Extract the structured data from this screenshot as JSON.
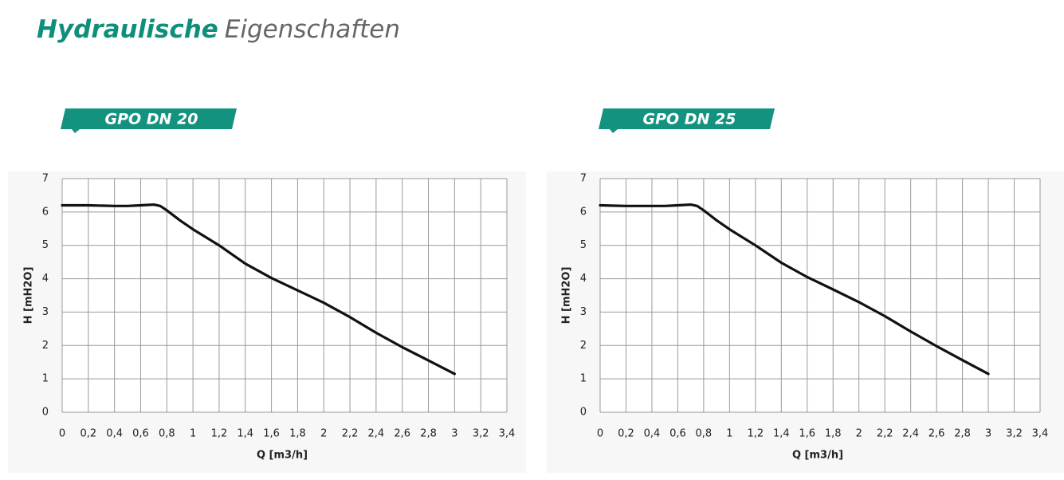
{
  "heading": {
    "bold": "Hydraulische",
    "light": "Eigenschaften"
  },
  "chart_data": [
    {
      "type": "line",
      "title": "GPO DN 20",
      "x_label": "Q [m3/h]",
      "y_label": "H [mH2O]",
      "color": "#111111",
      "grid": true,
      "x": [
        0,
        0.2,
        0.4,
        0.5,
        0.6,
        0.7,
        0.75,
        0.8,
        0.9,
        1.0,
        1.2,
        1.4,
        1.6,
        1.8,
        2.0,
        2.2,
        2.4,
        2.6,
        2.8,
        3.0
      ],
      "values": [
        6.2,
        6.2,
        6.18,
        6.18,
        6.2,
        6.22,
        6.18,
        6.05,
        5.75,
        5.48,
        5.0,
        4.45,
        4.02,
        3.65,
        3.28,
        2.85,
        2.38,
        1.95,
        1.55,
        1.15
      ],
      "xlim": [
        0,
        3.4
      ],
      "ylim": [
        0,
        7
      ],
      "xticks": [
        0,
        {
          "value": 0.2,
          "label": "0,2"
        },
        {
          "value": 0.4,
          "label": "0,4"
        },
        {
          "value": 0.6,
          "label": "0,6"
        },
        {
          "value": 0.8,
          "label": "0,8"
        },
        1,
        {
          "value": 1.2,
          "label": "1,2"
        },
        {
          "value": 1.4,
          "label": "1,4"
        },
        {
          "value": 1.6,
          "label": "1,6"
        },
        {
          "value": 1.8,
          "label": "1,8"
        },
        2,
        {
          "value": 2.2,
          "label": "2,2"
        },
        {
          "value": 2.4,
          "label": "2,4"
        },
        {
          "value": 2.6,
          "label": "2,6"
        },
        {
          "value": 2.8,
          "label": "2,8"
        },
        3,
        {
          "value": 3.2,
          "label": "3,2"
        },
        {
          "value": 3.4,
          "label": "3,4"
        }
      ],
      "yticks": [
        0,
        1,
        2,
        3,
        4,
        5,
        6,
        7
      ]
    },
    {
      "type": "line",
      "title": "GPO DN 25",
      "x_label": "Q [m3/h]",
      "y_label": "H [mH2O]",
      "color": "#111111",
      "grid": true,
      "x": [
        0,
        0.2,
        0.4,
        0.5,
        0.6,
        0.7,
        0.75,
        0.8,
        0.9,
        1.0,
        1.2,
        1.4,
        1.6,
        1.8,
        2.0,
        2.2,
        2.4,
        2.6,
        2.8,
        3.0
      ],
      "values": [
        6.2,
        6.18,
        6.18,
        6.18,
        6.2,
        6.22,
        6.18,
        6.05,
        5.75,
        5.48,
        5.0,
        4.48,
        4.05,
        3.68,
        3.3,
        2.88,
        2.42,
        1.98,
        1.56,
        1.15
      ],
      "xlim": [
        0,
        3.4
      ],
      "ylim": [
        0,
        7
      ],
      "xticks": [
        0,
        {
          "value": 0.2,
          "label": "0,2"
        },
        {
          "value": 0.4,
          "label": "0,4"
        },
        {
          "value": 0.6,
          "label": "0,6"
        },
        {
          "value": 0.8,
          "label": "0,8"
        },
        1,
        {
          "value": 1.2,
          "label": "1,2"
        },
        {
          "value": 1.4,
          "label": "1,4"
        },
        {
          "value": 1.6,
          "label": "1,6"
        },
        {
          "value": 1.8,
          "label": "1,8"
        },
        2,
        {
          "value": 2.2,
          "label": "2,2"
        },
        {
          "value": 2.4,
          "label": "2,4"
        },
        {
          "value": 2.6,
          "label": "2,6"
        },
        {
          "value": 2.8,
          "label": "2,8"
        },
        3,
        {
          "value": 3.2,
          "label": "3,2"
        },
        {
          "value": 3.4,
          "label": "3,4"
        }
      ],
      "yticks": [
        0,
        1,
        2,
        3,
        4,
        5,
        6,
        7
      ]
    }
  ]
}
